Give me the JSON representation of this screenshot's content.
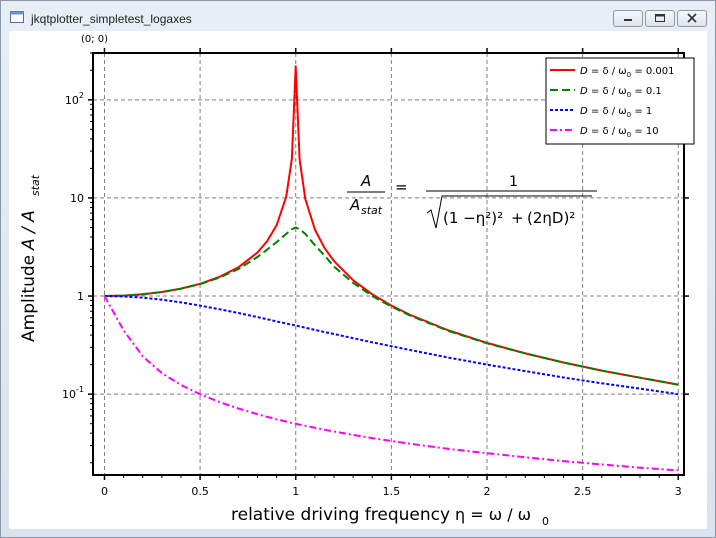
{
  "window": {
    "title": "jkqtplotter_simpletest_logaxes",
    "minimize_icon": "minimize-icon",
    "maximize_icon": "maximize-icon",
    "close_icon": "close-icon"
  },
  "plot": {
    "coord_readout": "(0; 0)",
    "formula": {
      "lhs_num": "A",
      "lhs_den": "A",
      "lhs_den_sub": "stat",
      "equals": "=",
      "rhs_num": "1",
      "term1": "(1 −η²)²",
      "plus": "+",
      "term2": "(2ηD)²"
    },
    "colors": {
      "red": "#ff0000",
      "green": "#008000",
      "blue": "#0000ff",
      "magenta": "#ff00ff",
      "grid": "#7f7f7f"
    }
  },
  "chart_data": {
    "type": "line",
    "title": "",
    "xlabel": "relative driving frequency η = ω/ω₀",
    "xlabel_text": "relative driving frequency",
    "xlabel_math": "η =  ω /  ω",
    "xlabel_math_sub": "0",
    "ylabel": "Amplitude A / A_stat",
    "ylabel_text": "Amplitude",
    "ylabel_math": "A / A",
    "ylabel_math_sub": "stat",
    "xlim": [
      -0.06,
      3.03
    ],
    "ylim": [
      0.015,
      300
    ],
    "y_scale": "log",
    "grid": true,
    "legend_position": "top-right",
    "x_ticks": [
      {
        "v": 0,
        "label": "0"
      },
      {
        "v": 0.5,
        "label": "0.5"
      },
      {
        "v": 1,
        "label": "1"
      },
      {
        "v": 1.5,
        "label": "1.5"
      },
      {
        "v": 2,
        "label": "2"
      },
      {
        "v": 2.5,
        "label": "2.5"
      },
      {
        "v": 3,
        "label": "3"
      }
    ],
    "y_ticks": [
      {
        "v": 0.1,
        "base": "10",
        "exp": "-1"
      },
      {
        "v": 1,
        "base": "1",
        "exp": ""
      },
      {
        "v": 10,
        "base": "10",
        "exp": ""
      },
      {
        "v": 100,
        "base": "10",
        "exp": "2"
      }
    ],
    "x": [
      0,
      0.1,
      0.2,
      0.3,
      0.4,
      0.5,
      0.6,
      0.7,
      0.8,
      0.85,
      0.9,
      0.95,
      0.98,
      1.0,
      1.02,
      1.05,
      1.1,
      1.15,
      1.2,
      1.3,
      1.4,
      1.5,
      1.6,
      1.8,
      2.0,
      2.2,
      2.4,
      2.6,
      2.8,
      3.0
    ],
    "series": [
      {
        "name": "D = δ/ω₀ = 0.001",
        "legend_value": "0.001",
        "color": "#ff0000",
        "dash": "solid",
        "values": [
          1.0,
          1.01,
          1.042,
          1.099,
          1.19,
          1.333,
          1.5625,
          1.961,
          2.778,
          3.604,
          5.263,
          10.26,
          25.25,
          220,
          24.75,
          9.756,
          4.762,
          3.101,
          2.273,
          1.449,
          1.042,
          0.8,
          0.641,
          0.446,
          0.333,
          0.26,
          0.21,
          0.174,
          0.147,
          0.125
        ]
      },
      {
        "name": "D = δ/ω₀ = 0.1",
        "legend_value": "0.1",
        "color": "#008000",
        "dash": "dashed",
        "values": [
          1.0,
          1.01,
          1.041,
          1.098,
          1.187,
          1.325,
          1.538,
          1.885,
          2.5,
          2.97,
          3.55,
          4.3,
          4.8,
          5.0,
          4.8,
          4.3,
          3.3,
          2.6,
          2.0,
          1.36,
          1.0,
          0.78,
          0.63,
          0.44,
          0.33,
          0.26,
          0.21,
          0.174,
          0.147,
          0.125
        ]
      },
      {
        "name": "D = δ/ω₀ = 1",
        "legend_value": "1",
        "color": "#0000ff",
        "dash": "dotted",
        "values": [
          1.0,
          0.99,
          0.962,
          0.917,
          0.862,
          0.8,
          0.735,
          0.671,
          0.61,
          0.581,
          0.552,
          0.525,
          0.51,
          0.5,
          0.49,
          0.476,
          0.452,
          0.43,
          0.41,
          0.372,
          0.338,
          0.308,
          0.281,
          0.236,
          0.2,
          0.172,
          0.148,
          0.129,
          0.114,
          0.1
        ]
      },
      {
        "name": "D = δ/ω₀ = 10",
        "legend_value": "10",
        "color": "#ff00ff",
        "dash": "dashdot",
        "values": [
          1.0,
          0.448,
          0.243,
          0.164,
          0.124,
          0.0998,
          0.0832,
          0.0714,
          0.0625,
          0.0588,
          0.0555,
          0.0526,
          0.051,
          0.05,
          0.049,
          0.0476,
          0.0454,
          0.0434,
          0.0416,
          0.0384,
          0.0357,
          0.0333,
          0.0312,
          0.0277,
          0.025,
          0.0227,
          0.0208,
          0.0192,
          0.0178,
          0.0167
        ]
      }
    ]
  }
}
